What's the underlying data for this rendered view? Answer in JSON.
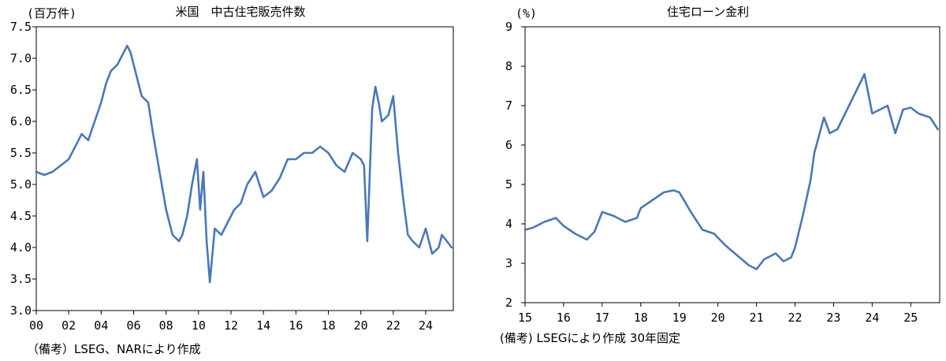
{
  "chart_data": [
    {
      "type": "line",
      "title": "米国　中古住宅販売件数",
      "unit_label": "(百万件)",
      "note": "（備考）LSEG、NARにより作成",
      "color": "#4a78b8",
      "ylim": [
        3.0,
        7.5
      ],
      "xlim": [
        2000,
        2025.7
      ],
      "ytick_labels": [
        "3.0",
        "3.5",
        "4.0",
        "4.5",
        "5.0",
        "5.5",
        "6.0",
        "6.5",
        "7.0",
        "7.5"
      ],
      "ytick_values": [
        3.0,
        3.5,
        4.0,
        4.5,
        5.0,
        5.5,
        6.0,
        6.5,
        7.0,
        7.5
      ],
      "xtick_labels": [
        "00",
        "02",
        "04",
        "06",
        "08",
        "10",
        "12",
        "14",
        "16",
        "18",
        "20",
        "22",
        "24"
      ],
      "xtick_values": [
        2000,
        2002,
        2004,
        2006,
        2008,
        2010,
        2012,
        2014,
        2016,
        2018,
        2020,
        2022,
        2024
      ],
      "series": [
        {
          "x": [
            2000.0,
            2000.5,
            2001.0,
            2001.5,
            2002.0,
            2002.4,
            2002.8,
            2003.2,
            2003.6,
            2004.0,
            2004.3,
            2004.6,
            2005.0,
            2005.3,
            2005.6,
            2005.8,
            2006.1,
            2006.5,
            2006.9,
            2007.2,
            2007.6,
            2008.0,
            2008.4,
            2008.8,
            2009.0,
            2009.3,
            2009.6,
            2009.9,
            2010.1,
            2010.3,
            2010.5,
            2010.7,
            2011.0,
            2011.4,
            2011.8,
            2012.2,
            2012.6,
            2013.0,
            2013.5,
            2014.0,
            2014.5,
            2015.0,
            2015.5,
            2016.0,
            2016.5,
            2017.0,
            2017.5,
            2018.0,
            2018.5,
            2019.0,
            2019.5,
            2020.0,
            2020.2,
            2020.4,
            2020.7,
            2020.9,
            2021.1,
            2021.3,
            2021.7,
            2022.0,
            2022.3,
            2022.6,
            2022.9,
            2023.2,
            2023.6,
            2024.0,
            2024.4,
            2024.8,
            2025.0,
            2025.3,
            2025.6
          ],
          "values": [
            5.2,
            5.15,
            5.2,
            5.3,
            5.4,
            5.6,
            5.8,
            5.7,
            6.0,
            6.3,
            6.6,
            6.8,
            6.9,
            7.05,
            7.2,
            7.1,
            6.8,
            6.4,
            6.3,
            5.8,
            5.2,
            4.6,
            4.2,
            4.1,
            4.2,
            4.5,
            5.0,
            5.4,
            4.6,
            5.2,
            4.1,
            3.45,
            4.3,
            4.2,
            4.4,
            4.6,
            4.7,
            5.0,
            5.2,
            4.8,
            4.9,
            5.1,
            5.4,
            5.4,
            5.5,
            5.5,
            5.6,
            5.5,
            5.3,
            5.2,
            5.5,
            5.4,
            5.3,
            4.1,
            6.2,
            6.55,
            6.3,
            6.0,
            6.1,
            6.4,
            5.5,
            4.8,
            4.2,
            4.1,
            4.0,
            4.3,
            3.9,
            4.0,
            4.2,
            4.1,
            4.0
          ]
        }
      ]
    },
    {
      "type": "line",
      "title": "住宅ローン金利",
      "unit_label": "(%)",
      "note": "(備考) LSEGにより作成 30年固定",
      "color": "#4a78b8",
      "ylim": [
        2,
        9
      ],
      "xlim": [
        2015,
        2025.75
      ],
      "ytick_labels": [
        "2",
        "3",
        "4",
        "5",
        "6",
        "7",
        "8",
        "9"
      ],
      "ytick_values": [
        2,
        3,
        4,
        5,
        6,
        7,
        8,
        9
      ],
      "xtick_labels": [
        "15",
        "16",
        "17",
        "18",
        "19",
        "20",
        "21",
        "22",
        "23",
        "24",
        "25"
      ],
      "xtick_values": [
        2015,
        2016,
        2017,
        2018,
        2019,
        2020,
        2021,
        2022,
        2023,
        2024,
        2025
      ],
      "series": [
        {
          "x": [
            2015.0,
            2015.2,
            2015.5,
            2015.8,
            2016.0,
            2016.3,
            2016.6,
            2016.8,
            2017.0,
            2017.3,
            2017.6,
            2017.9,
            2018.0,
            2018.3,
            2018.6,
            2018.85,
            2019.0,
            2019.3,
            2019.6,
            2019.9,
            2020.2,
            2020.5,
            2020.8,
            2021.0,
            2021.2,
            2021.5,
            2021.7,
            2021.9,
            2022.0,
            2022.2,
            2022.4,
            2022.5,
            2022.75,
            2022.9,
            2023.1,
            2023.4,
            2023.6,
            2023.8,
            2024.0,
            2024.2,
            2024.4,
            2024.6,
            2024.8,
            2025.0,
            2025.2,
            2025.5,
            2025.7
          ],
          "values": [
            3.85,
            3.9,
            4.05,
            4.15,
            3.95,
            3.75,
            3.6,
            3.8,
            4.3,
            4.2,
            4.05,
            4.15,
            4.4,
            4.6,
            4.8,
            4.85,
            4.8,
            4.3,
            3.85,
            3.75,
            3.45,
            3.2,
            2.95,
            2.85,
            3.1,
            3.25,
            3.05,
            3.15,
            3.4,
            4.2,
            5.1,
            5.8,
            6.7,
            6.3,
            6.4,
            7.0,
            7.4,
            7.8,
            6.8,
            6.9,
            7.0,
            6.3,
            6.9,
            6.95,
            6.8,
            6.7,
            6.4
          ]
        }
      ]
    }
  ]
}
